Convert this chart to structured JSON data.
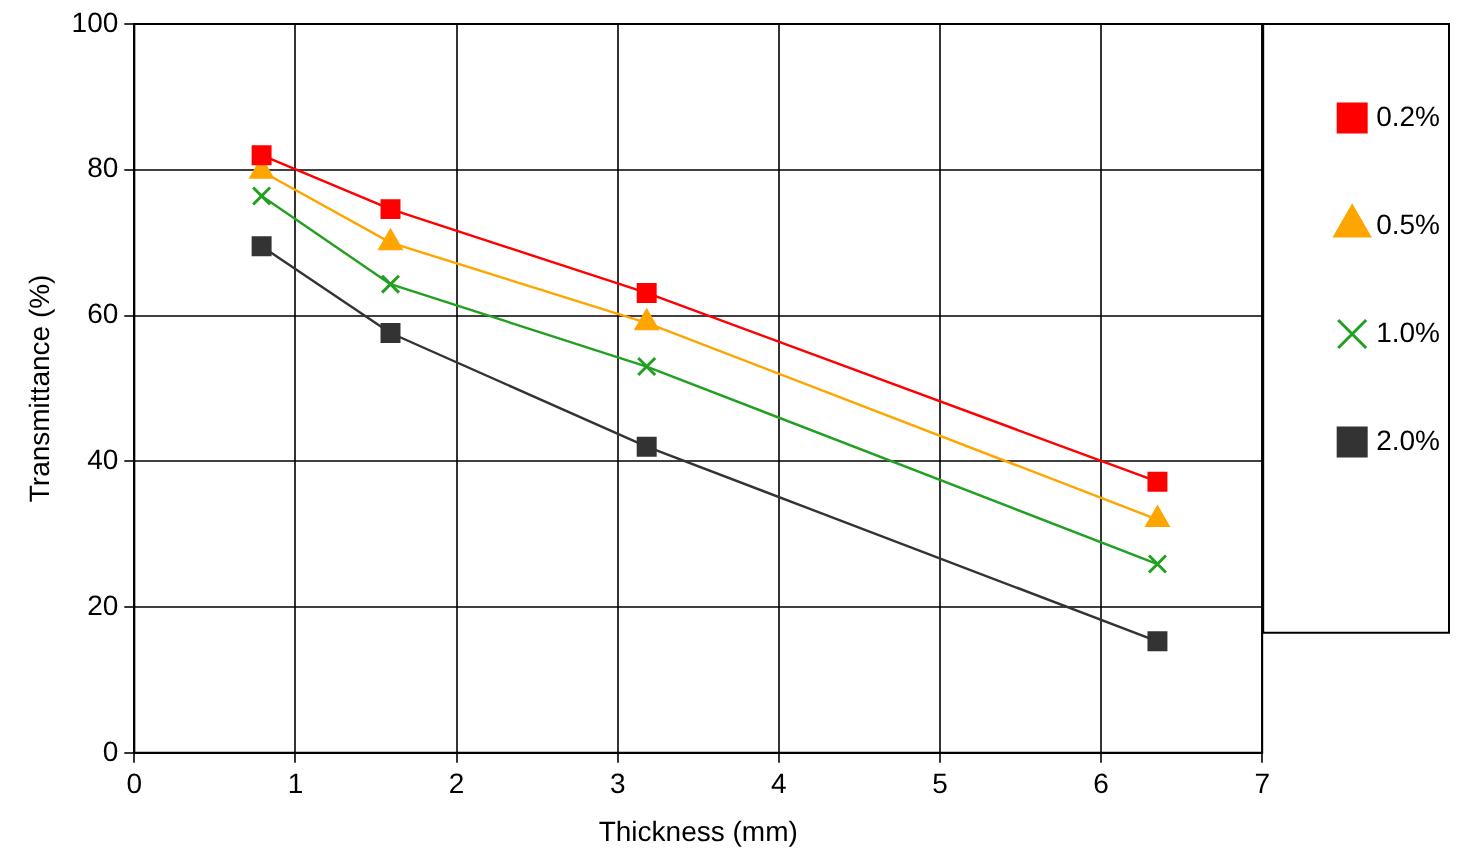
{
  "chart_data": {
    "type": "line",
    "xlabel": "Thickness (mm)",
    "ylabel": "Transmittance (%)",
    "x": [
      0.79,
      1.59,
      3.18,
      6.35
    ],
    "series": [
      {
        "name": "0.2%",
        "color": "#ff0000",
        "marker": "square",
        "values": [
          82,
          74.6,
          63.1,
          37.2
        ]
      },
      {
        "name": "0.5%",
        "color": "#ffa500",
        "marker": "triangle",
        "values": [
          79.8,
          70,
          59,
          32
        ]
      },
      {
        "name": "1.0%",
        "color": "#22a022",
        "marker": "cross",
        "values": [
          76.4,
          64.3,
          53,
          25.9
        ]
      },
      {
        "name": "2.0%",
        "color": "#333333",
        "marker": "square",
        "values": [
          69.5,
          57.6,
          42,
          15.3
        ]
      }
    ],
    "xlim": [
      0,
      7
    ],
    "xticks": [
      0,
      1,
      2,
      3,
      4,
      5,
      6,
      7
    ],
    "ylim": [
      0,
      100
    ],
    "yticks": [
      0,
      20,
      40,
      60,
      80,
      100
    ],
    "grid": true,
    "legend": "right",
    "line_style": "solid"
  }
}
